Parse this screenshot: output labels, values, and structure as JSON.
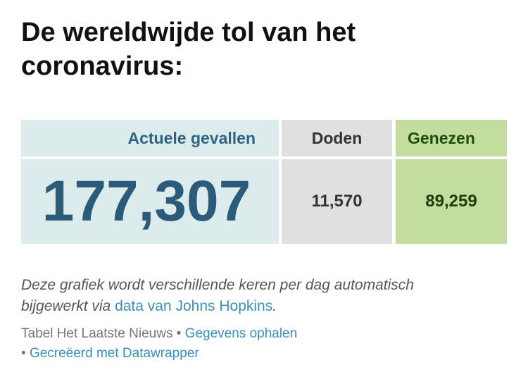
{
  "header": {
    "title": "De wereldwijde tol van het coronavirus:"
  },
  "table": {
    "columns": [
      "Actuele gevallen",
      "Doden",
      "Genezen"
    ],
    "rows": [
      [
        "177,307",
        "11,570",
        "89,259"
      ]
    ]
  },
  "note": {
    "text": "Deze grafiek wordt verschillende keren per dag automatisch bijgewerkt via",
    "link": "data van Johns Hopkins",
    "end": "."
  },
  "footer": {
    "source": "Tabel Het Laatste Nieuws",
    "separator": "•",
    "download": "Gegevens ophalen",
    "credit": "Gecreëerd met Datawrapper"
  }
}
